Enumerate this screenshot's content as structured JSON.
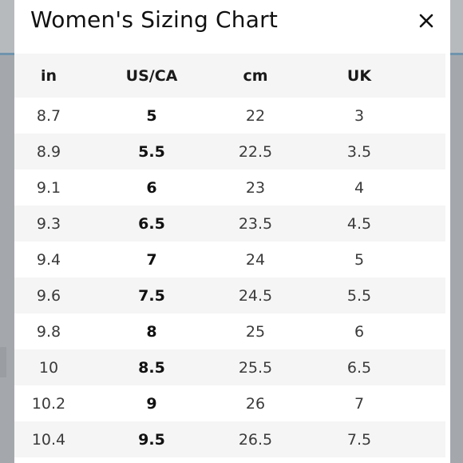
{
  "modal": {
    "title": "Women's Sizing Chart",
    "close_icon": "close-icon"
  },
  "table": {
    "headers": [
      "in",
      "US/CA",
      "cm",
      "UK"
    ],
    "rows": [
      {
        "in": "8.7",
        "us": "5",
        "cm": "22",
        "uk": "3"
      },
      {
        "in": "8.9",
        "us": "5.5",
        "cm": "22.5",
        "uk": "3.5"
      },
      {
        "in": "9.1",
        "us": "6",
        "cm": "23",
        "uk": "4"
      },
      {
        "in": "9.3",
        "us": "6.5",
        "cm": "23.5",
        "uk": "4.5"
      },
      {
        "in": "9.4",
        "us": "7",
        "cm": "24",
        "uk": "5"
      },
      {
        "in": "9.6",
        "us": "7.5",
        "cm": "24.5",
        "uk": "5.5"
      },
      {
        "in": "9.8",
        "us": "8",
        "cm": "25",
        "uk": "6"
      },
      {
        "in": "10",
        "us": "8.5",
        "cm": "25.5",
        "uk": "6.5"
      },
      {
        "in": "10.2",
        "us": "9",
        "cm": "26",
        "uk": "7"
      },
      {
        "in": "10.4",
        "us": "9.5",
        "cm": "26.5",
        "uk": "7.5"
      }
    ]
  },
  "colors": {
    "modal_bg": "#ffffff",
    "stripe": "#f5f5f5",
    "text": "#111111",
    "backdrop": "#a7abb0",
    "accent_line": "#6f94ad"
  }
}
